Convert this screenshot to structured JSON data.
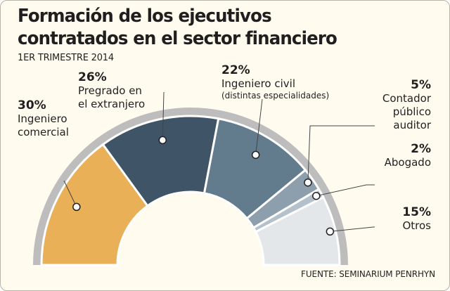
{
  "header": {
    "title_line1": "Formación de los ejecutivos",
    "title_line2": "contratados en el sector financiero",
    "subtitle": "1ER TRIMESTRE 2014"
  },
  "footer": {
    "source": "FUENTE: SEMINARIUM PENRHYN"
  },
  "chart_data": {
    "type": "pie",
    "variant": "semicircle-donut",
    "title": "Formación de los ejecutivos contratados en el sector financiero",
    "subtitle": "1ER TRIMESTRE 2014",
    "unit": "%",
    "slices": [
      {
        "key": "ingeniero-comercial",
        "pct_label": "30%",
        "value": 30,
        "name_lines": [
          "Ingeniero",
          "comercial"
        ],
        "sub": "",
        "color": "#e9b058"
      },
      {
        "key": "pregrado-extranjero",
        "pct_label": "26%",
        "value": 26,
        "name_lines": [
          "Pregrado en",
          "el extranjero"
        ],
        "sub": "",
        "color": "#3f5466"
      },
      {
        "key": "ingeniero-civil",
        "pct_label": "22%",
        "value": 22,
        "name_lines": [
          "Ingeniero civil"
        ],
        "sub": "(distintas especialidades)",
        "color": "#627b8d"
      },
      {
        "key": "contador-auditor",
        "pct_label": "5%",
        "value": 5,
        "name_lines": [
          "Contador",
          "público",
          "auditor"
        ],
        "sub": "",
        "color": "#8d9fac"
      },
      {
        "key": "abogado",
        "pct_label": "2%",
        "value": 2,
        "name_lines": [
          "Abogado"
        ],
        "sub": "",
        "color": "#b4c1cb"
      },
      {
        "key": "otros",
        "pct_label": "15%",
        "value": 15,
        "name_lines": [
          "Otros"
        ],
        "sub": "",
        "color": "#e3e7ea"
      }
    ],
    "source": "FUENTE: SEMINARIUM PENRHYN"
  }
}
